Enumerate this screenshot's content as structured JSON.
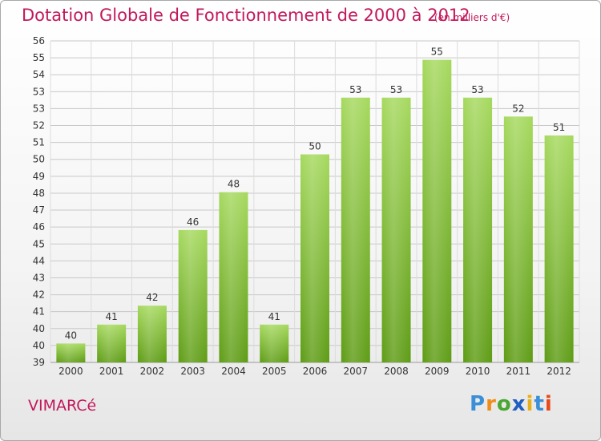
{
  "header": {
    "title": "Dotation Globale de Fonctionnement de 2000 à 2012",
    "subtitle": "(en milliers d'€)"
  },
  "footer": {
    "commune": "VIMARCé",
    "logo_text": "Proxiti"
  },
  "colors": {
    "title": "#c2185b",
    "bar_light": "#9fd356",
    "bar_dark": "#5f9e16",
    "grid": "#c8c8c8"
  },
  "chart_data": {
    "type": "bar",
    "title": "Dotation Globale de Fonctionnement de 2000 à 2012",
    "subtitle": "(en milliers d'€)",
    "categories": [
      "2000",
      "2001",
      "2002",
      "2003",
      "2004",
      "2005",
      "2006",
      "2007",
      "2008",
      "2009",
      "2010",
      "2011",
      "2012"
    ],
    "values": [
      40,
      41,
      42,
      46,
      48,
      41,
      50,
      53,
      53,
      55,
      53,
      52,
      51
    ],
    "ylim": [
      39,
      56
    ],
    "yticks": [
      "39",
      "40",
      "40",
      "41",
      "42",
      "43",
      "44",
      "45",
      "46",
      "47",
      "48",
      "49",
      "50",
      "51",
      "52",
      "53",
      "53",
      "54",
      "55",
      "56"
    ],
    "grid": true,
    "legend": "none"
  }
}
